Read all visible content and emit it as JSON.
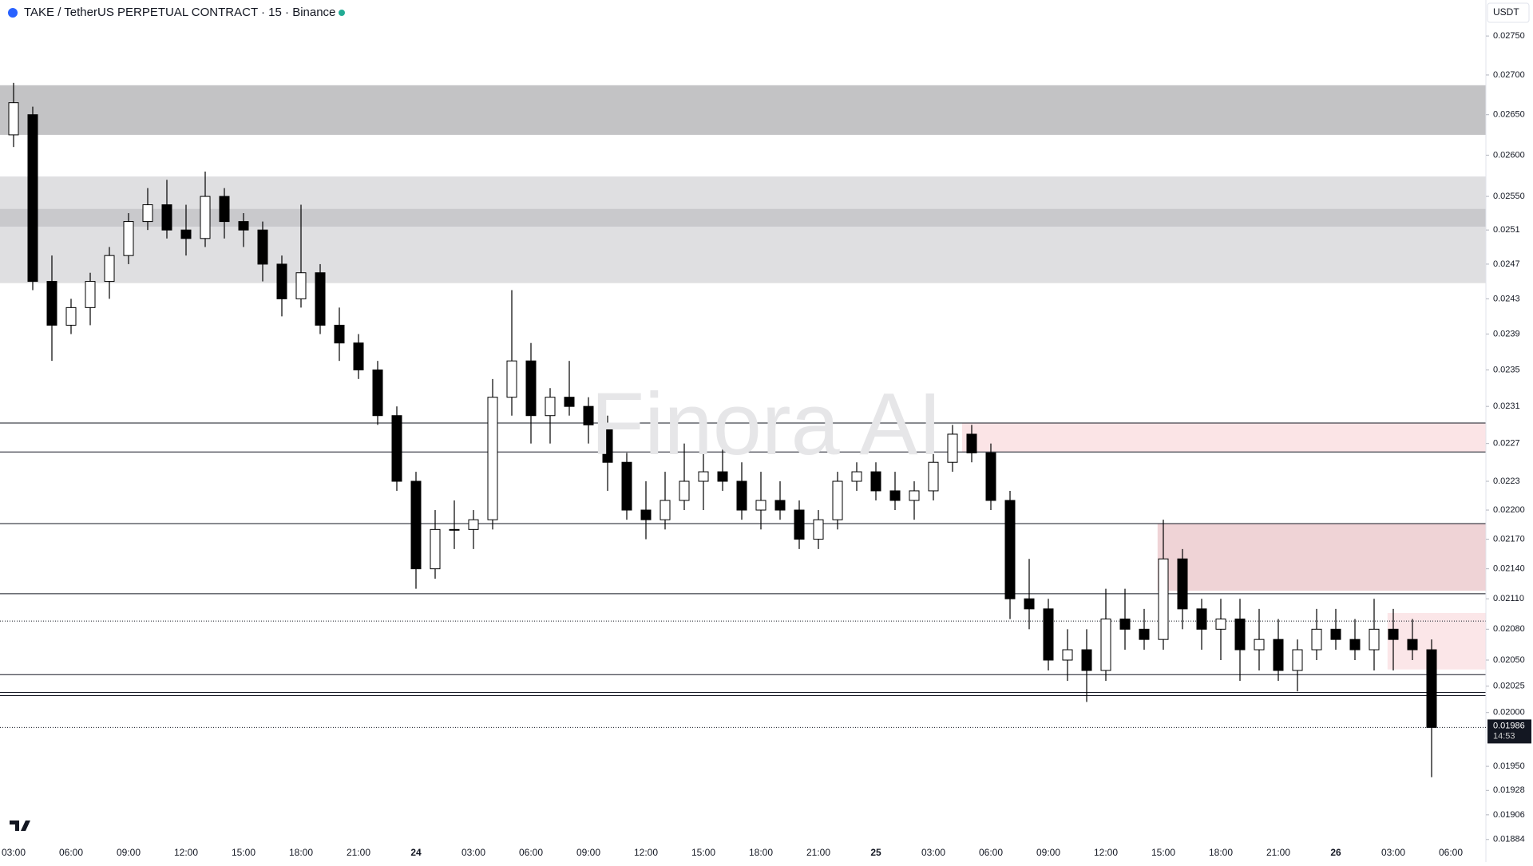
{
  "chart_data": {
    "type": "candlestick",
    "title": "TAKE / TetherUS PERPETUAL CONTRACT · 15 · Binance",
    "watermark": "Finora AI",
    "axis_unit": "USDT",
    "log_scale": true,
    "ylim": [
      0.01881,
      0.02797
    ],
    "yticks": [
      {
        "value": 0.0275,
        "label": "0.02750"
      },
      {
        "value": 0.027,
        "label": "0.02700"
      },
      {
        "value": 0.0265,
        "label": "0.02650"
      },
      {
        "value": 0.026,
        "label": "0.02600"
      },
      {
        "value": 0.0255,
        "label": "0.02550"
      },
      0.0251,
      0.0247,
      0.0243,
      0.0239,
      0.0235,
      0.0231,
      0.0227,
      0.0223,
      {
        "value": 0.022,
        "label": "0.02200"
      },
      {
        "value": 0.0217,
        "label": "0.02170"
      },
      {
        "value": 0.0214,
        "label": "0.02140"
      },
      {
        "value": 0.0211,
        "label": "0.02110"
      },
      {
        "value": 0.0208,
        "label": "0.02080"
      },
      {
        "value": 0.0205,
        "label": "0.02050"
      },
      0.02025,
      {
        "value": 0.02,
        "label": "0.02000"
      },
      {
        "value": 0.0195,
        "label": "0.01950"
      },
      0.01928,
      0.01906,
      0.01884
    ],
    "categories": [
      "03:00",
      null,
      null,
      "06:00",
      null,
      null,
      "09:00",
      null,
      null,
      "12:00",
      null,
      null,
      "15:00",
      null,
      null,
      "18:00",
      null,
      null,
      "21:00",
      null,
      null,
      "24",
      null,
      null,
      "03:00",
      null,
      null,
      "06:00",
      null,
      null,
      "09:00",
      null,
      null,
      "12:00",
      null,
      null,
      "15:00",
      null,
      null,
      "18:00",
      null,
      null,
      "21:00",
      null,
      null,
      "25",
      null,
      null,
      "03:00",
      null,
      null,
      "06:00",
      null,
      null,
      "09:00",
      null,
      null,
      "12:00",
      null,
      null,
      "15:00",
      null,
      null,
      "18:00",
      null,
      null,
      "21:00",
      null,
      null,
      "26",
      null,
      null,
      "03:00",
      null,
      null,
      "06:00"
    ],
    "up_color": "#ffffff",
    "down_color": "#000000",
    "wick_color": "#000000",
    "open": [
      0.02625,
      0.0265,
      0.0245,
      0.024,
      0.0242,
      0.0245,
      0.0248,
      0.0252,
      0.0254,
      0.0251,
      0.025,
      0.0255,
      0.0252,
      0.0251,
      0.0247,
      0.0243,
      0.0246,
      0.024,
      0.0238,
      0.0235,
      0.023,
      0.0223,
      0.0214,
      0.0218,
      0.0218,
      0.0219,
      0.0232,
      0.0236,
      0.023,
      0.0232,
      0.0231,
      0.0229,
      0.0225,
      0.022,
      0.0219,
      0.0221,
      0.0223,
      0.0224,
      0.0223,
      0.022,
      0.0221,
      0.022,
      0.0217,
      0.0219,
      0.0223,
      0.0224,
      0.0222,
      0.0221,
      0.0222,
      0.0225,
      0.0228,
      0.0226,
      0.0221,
      0.0211,
      0.021,
      0.0205,
      0.0206,
      0.0204,
      0.0209,
      0.0208,
      0.0207,
      0.0215,
      0.021,
      0.0208,
      0.0209,
      0.0206,
      0.0207,
      0.0204,
      0.0206,
      0.0208,
      0.0207,
      0.0206,
      0.0208,
      0.0207,
      0.0206,
      null
    ],
    "high": [
      0.0269,
      0.0266,
      0.0248,
      0.0243,
      0.0246,
      0.0249,
      0.0253,
      0.0256,
      0.0257,
      0.0254,
      0.0258,
      0.0256,
      0.0253,
      0.0252,
      0.0248,
      0.0254,
      0.0247,
      0.0242,
      0.0239,
      0.0236,
      0.0231,
      0.0224,
      0.022,
      0.0221,
      0.022,
      0.0234,
      0.0244,
      0.0238,
      0.0233,
      0.0236,
      0.0232,
      0.023,
      0.0226,
      0.0223,
      0.0224,
      0.0227,
      0.0226,
      0.0227,
      0.0225,
      0.0224,
      0.0223,
      0.0221,
      0.022,
      0.0224,
      0.0225,
      0.0225,
      0.0224,
      0.0223,
      0.0226,
      0.0229,
      0.0229,
      0.0227,
      0.0222,
      0.0215,
      0.0211,
      0.0208,
      0.0208,
      0.0212,
      0.0212,
      0.021,
      0.0219,
      0.0216,
      0.0211,
      0.0211,
      0.0211,
      0.021,
      0.0209,
      0.0207,
      0.021,
      0.021,
      0.0209,
      0.0211,
      0.021,
      0.0209,
      0.0207,
      null
    ],
    "low": [
      0.0261,
      0.0244,
      0.0236,
      0.0239,
      0.024,
      0.0243,
      0.0247,
      0.0251,
      0.025,
      0.0248,
      0.0249,
      0.025,
      0.0249,
      0.0245,
      0.0241,
      0.0242,
      0.0239,
      0.0236,
      0.0234,
      0.0229,
      0.0222,
      0.0212,
      0.0213,
      0.0216,
      0.0216,
      0.0218,
      0.023,
      0.0227,
      0.0227,
      0.023,
      0.0227,
      0.0222,
      0.0219,
      0.0217,
      0.0218,
      0.022,
      0.022,
      0.0222,
      0.0219,
      0.0218,
      0.0219,
      0.0216,
      0.0216,
      0.0218,
      0.0222,
      0.0221,
      0.022,
      0.0219,
      0.0221,
      0.0224,
      0.0225,
      0.022,
      0.0209,
      0.0208,
      0.0204,
      0.0203,
      0.0201,
      0.0203,
      0.0206,
      0.0206,
      0.0206,
      0.0208,
      0.0206,
      0.0205,
      0.0203,
      0.0204,
      0.0203,
      0.0202,
      0.0205,
      0.0206,
      0.0205,
      0.0204,
      0.0204,
      0.0205,
      0.0194,
      null
    ],
    "close": [
      0.02665,
      0.0245,
      0.024,
      0.0242,
      0.0245,
      0.0248,
      0.0252,
      0.0254,
      0.0251,
      0.025,
      0.0255,
      0.0252,
      0.0251,
      0.0247,
      0.0243,
      0.0246,
      0.024,
      0.0238,
      0.0235,
      0.023,
      0.0223,
      0.0214,
      0.0218,
      0.0218,
      0.0219,
      0.0232,
      0.0236,
      0.023,
      0.0232,
      0.0231,
      0.0229,
      0.0225,
      0.022,
      0.0219,
      0.0221,
      0.0223,
      0.0224,
      0.0223,
      0.022,
      0.0221,
      0.022,
      0.0217,
      0.0219,
      0.0223,
      0.0224,
      0.0222,
      0.0221,
      0.0222,
      0.0225,
      0.0228,
      0.0226,
      0.0221,
      0.0211,
      0.021,
      0.0205,
      0.0206,
      0.0204,
      0.0209,
      0.0208,
      0.0207,
      0.0215,
      0.021,
      0.0208,
      0.0209,
      0.0206,
      0.0207,
      0.0204,
      0.0206,
      0.0208,
      0.0207,
      0.0206,
      0.0208,
      0.0207,
      0.0206,
      0.01986,
      null
    ],
    "zones": [
      {
        "from": 0.02625,
        "to": 0.02687,
        "start": 0,
        "color": "#c3c3c5"
      },
      {
        "from": 0.02448,
        "to": 0.02574,
        "start": 0,
        "color": "#dfdfe1"
      },
      {
        "from": 0.02514,
        "to": 0.02535,
        "start": 0,
        "color": "#c9c9cc"
      },
      {
        "from": 0.02261,
        "to": 0.02292,
        "start": 49.5,
        "color": "#fbe4e6"
      },
      {
        "from": 0.02118,
        "to": 0.02186,
        "start": 59.7,
        "color": "#efd3d6"
      },
      {
        "from": 0.02041,
        "to": 0.02096,
        "start": 71.7,
        "color": "#fbe6e8"
      }
    ],
    "levels": [
      {
        "value": 0.02292,
        "style": "solid"
      },
      {
        "value": 0.02261,
        "style": "solid"
      },
      {
        "value": 0.02186,
        "style": "solid"
      },
      {
        "value": 0.02115,
        "style": "solid"
      },
      {
        "value": 0.02088,
        "style": "dotted"
      },
      {
        "value": 0.02036,
        "style": "solid"
      },
      {
        "value": 0.02019,
        "style": "solid"
      },
      {
        "value": 0.02016,
        "style": "solid"
      }
    ],
    "last_price": 0.01986,
    "countdown": "14:53"
  }
}
